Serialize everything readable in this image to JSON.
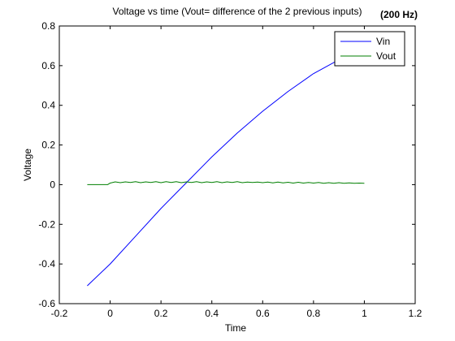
{
  "chart_data": {
    "type": "line",
    "title": "Voltage vs time (Vout= difference of the 2 previous inputs)",
    "title_suffix": "(200 Hz)",
    "xlabel": "Time",
    "ylabel": "Voltage",
    "xlim": [
      -0.2,
      1.2
    ],
    "ylim": [
      -0.6,
      0.8
    ],
    "xticks": [
      -0.2,
      0,
      0.2,
      0.4,
      0.6,
      0.8,
      1,
      1.2
    ],
    "xtick_labels": [
      "-0.2",
      "0",
      "0.2",
      "0.4",
      "0.6",
      "0.8",
      "1",
      "1.2"
    ],
    "yticks": [
      -0.6,
      -0.4,
      -0.2,
      0,
      0.2,
      0.4,
      0.6,
      0.8
    ],
    "ytick_labels": [
      "-0.6",
      "-0.4",
      "-0.2",
      "0",
      "0.2",
      "0.4",
      "0.6",
      "0.8"
    ],
    "grid": false,
    "legend_position": "top-right",
    "series": [
      {
        "name": "Vin",
        "color": "#0000ff",
        "x": [
          -0.09,
          0.0,
          0.1,
          0.2,
          0.3,
          0.4,
          0.5,
          0.6,
          0.7,
          0.8,
          0.9,
          1.0
        ],
        "y": [
          -0.51,
          -0.4,
          -0.26,
          -0.12,
          0.01,
          0.14,
          0.26,
          0.37,
          0.47,
          0.56,
          0.63,
          0.71
        ]
      },
      {
        "name": "Vout",
        "color": "#007f00",
        "x": [
          -0.09,
          -0.01,
          0.0,
          0.02,
          0.04,
          0.06,
          0.08,
          0.1,
          0.12,
          0.14,
          0.16,
          0.18,
          0.2,
          0.22,
          0.24,
          0.26,
          0.28,
          0.3,
          0.32,
          0.34,
          0.36,
          0.38,
          0.4,
          0.42,
          0.44,
          0.46,
          0.48,
          0.5,
          0.52,
          0.54,
          0.56,
          0.58,
          0.6,
          0.62,
          0.64,
          0.66,
          0.68,
          0.7,
          0.72,
          0.74,
          0.76,
          0.78,
          0.8,
          0.82,
          0.84,
          0.86,
          0.88,
          0.9,
          0.92,
          0.94,
          0.96,
          0.98,
          1.0
        ],
        "y": [
          0.0,
          0.0,
          0.008,
          0.014,
          0.01,
          0.014,
          0.011,
          0.015,
          0.01,
          0.014,
          0.011,
          0.015,
          0.01,
          0.015,
          0.011,
          0.015,
          0.01,
          0.014,
          0.011,
          0.015,
          0.01,
          0.014,
          0.011,
          0.015,
          0.01,
          0.014,
          0.011,
          0.015,
          0.01,
          0.013,
          0.011,
          0.013,
          0.01,
          0.013,
          0.009,
          0.013,
          0.009,
          0.012,
          0.008,
          0.012,
          0.008,
          0.011,
          0.008,
          0.011,
          0.007,
          0.01,
          0.007,
          0.01,
          0.007,
          0.009,
          0.007,
          0.008,
          0.007
        ]
      }
    ]
  }
}
